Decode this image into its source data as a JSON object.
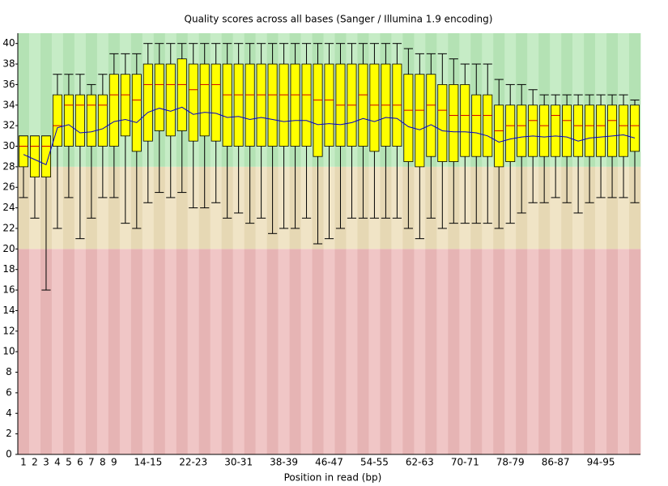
{
  "chart_data": {
    "type": "box",
    "title": "Quality scores across all bases (Sanger / Illumina 1.9 encoding)",
    "xlabel": "Position in read (bp)",
    "categories": [
      "1",
      "2",
      "3",
      "4",
      "5",
      "6",
      "7",
      "8",
      "9",
      null,
      null,
      "14-15",
      null,
      null,
      null,
      "22-23",
      null,
      null,
      null,
      "30-31",
      null,
      null,
      null,
      "38-39",
      null,
      null,
      null,
      "46-47",
      null,
      null,
      null,
      "54-55",
      null,
      null,
      null,
      "62-63",
      null,
      null,
      null,
      "70-71",
      null,
      null,
      null,
      "78-79",
      null,
      null,
      null,
      "86-87",
      null,
      null,
      null,
      "94-95",
      null,
      null,
      null
    ],
    "low": [
      25,
      23,
      16,
      22,
      25,
      21,
      23,
      25,
      25,
      22.5,
      22,
      24.5,
      25.5,
      25,
      25.5,
      24,
      24,
      24.5,
      23,
      23.5,
      22.5,
      23,
      21.5,
      22,
      22,
      23,
      20.5,
      21,
      22,
      23,
      23,
      23,
      23,
      23,
      22,
      21,
      23,
      22,
      22.5,
      22.5,
      22.5,
      22.5,
      22,
      22.5,
      23.5,
      24.5,
      24.5,
      25,
      24.5,
      23.5,
      24.5,
      25,
      25,
      25,
      24.5
    ],
    "q1": [
      28,
      27,
      27,
      30,
      30,
      30,
      30,
      30,
      30,
      31,
      29.5,
      30.5,
      31.5,
      31,
      31.5,
      30.5,
      31,
      30.5,
      30,
      30,
      30,
      30,
      30,
      30,
      30,
      30,
      29,
      30,
      30,
      30,
      30,
      29.5,
      30,
      30,
      28.5,
      28,
      29,
      28.5,
      28.5,
      29,
      29,
      29,
      28,
      28.5,
      29,
      29,
      29,
      29,
      29,
      29,
      29,
      29,
      29,
      29,
      29.5
    ],
    "median": [
      30,
      30,
      30,
      32,
      34,
      34,
      34,
      34,
      35,
      35,
      34.5,
      36,
      36,
      36,
      36,
      35.5,
      36,
      36,
      35,
      35,
      35,
      35,
      35,
      35,
      35,
      35,
      34.5,
      34.5,
      34,
      34,
      35,
      34,
      34,
      34,
      33.5,
      33.5,
      34,
      33.5,
      33,
      33,
      33,
      33,
      31.5,
      32,
      32,
      32.5,
      32,
      33,
      32.5,
      32,
      32,
      32,
      32.5,
      32,
      32
    ],
    "q3": [
      31,
      31,
      31,
      35,
      35,
      35,
      35,
      35,
      37,
      37,
      37,
      38,
      38,
      38,
      38.5,
      38,
      38,
      38,
      38,
      38,
      38,
      38,
      38,
      38,
      38,
      38,
      38,
      38,
      38,
      38,
      38,
      38,
      38,
      38,
      37,
      37,
      37,
      36,
      36,
      36,
      35,
      35,
      34,
      34,
      34,
      34,
      34,
      34,
      34,
      34,
      34,
      34,
      34,
      34,
      34
    ],
    "high": [
      31,
      31,
      31,
      37,
      37,
      37,
      36,
      37,
      39,
      39,
      39,
      40,
      40,
      40,
      40,
      40,
      40,
      40,
      40,
      40,
      40,
      40,
      40,
      40,
      40,
      40,
      40,
      40,
      40,
      40,
      40,
      40,
      40,
      40,
      39.5,
      39,
      39,
      39,
      38.5,
      38,
      38,
      38,
      36.5,
      36,
      36,
      35.5,
      35,
      35,
      35,
      35,
      35,
      35,
      35,
      35,
      34.5
    ],
    "mean": [
      29.2,
      28.7,
      28.2,
      31.8,
      32.1,
      31.3,
      31.4,
      31.7,
      32.4,
      32.6,
      32.3,
      33.3,
      33.7,
      33.4,
      33.8,
      33.1,
      33.3,
      33.2,
      32.8,
      32.9,
      32.6,
      32.8,
      32.6,
      32.4,
      32.5,
      32.5,
      32.1,
      32.2,
      32.1,
      32.3,
      32.7,
      32.4,
      32.8,
      32.7,
      31.9,
      31.6,
      32.1,
      31.5,
      31.4,
      31.4,
      31.3,
      31.0,
      30.4,
      30.7,
      30.9,
      31.0,
      30.9,
      31.0,
      30.9,
      30.5,
      30.8,
      30.9,
      31.0,
      31.1,
      30.8
    ],
    "box_color": "#ffff00",
    "median_color": "#cc0000",
    "mean_color": "#0000cc",
    "zones": [
      {
        "from": 0,
        "to": 20,
        "colors": [
          "#e6b4b4",
          "#f0c6c6"
        ]
      },
      {
        "from": 20,
        "to": 28,
        "colors": [
          "#e6d8b4",
          "#f0e4c6"
        ]
      },
      {
        "from": 28,
        "to": 41,
        "colors": [
          "#b4e2b4",
          "#c6ecc6"
        ]
      }
    ],
    "ylim": [
      0,
      41
    ],
    "yticks": [
      0,
      2,
      4,
      6,
      8,
      10,
      12,
      14,
      16,
      18,
      20,
      22,
      24,
      26,
      28,
      30,
      32,
      34,
      36,
      38,
      40
    ]
  }
}
